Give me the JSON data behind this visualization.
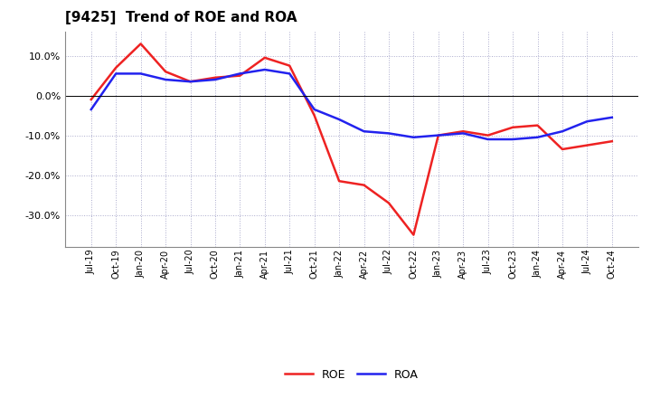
{
  "title": "[9425]  Trend of ROE and ROA",
  "x_labels": [
    "Jul-19",
    "Oct-19",
    "Jan-20",
    "Apr-20",
    "Jul-20",
    "Oct-20",
    "Jan-21",
    "Apr-21",
    "Jul-21",
    "Oct-21",
    "Jan-22",
    "Apr-22",
    "Jul-22",
    "Oct-22",
    "Jan-23",
    "Apr-23",
    "Jul-23",
    "Oct-23",
    "Jan-24",
    "Apr-24",
    "Jul-24",
    "Oct-24"
  ],
  "roe": [
    -1.0,
    7.0,
    13.0,
    6.0,
    3.5,
    4.5,
    5.0,
    9.5,
    7.5,
    -5.0,
    -21.5,
    -22.5,
    -27.0,
    -35.0,
    -10.0,
    -9.0,
    -10.0,
    -8.0,
    -7.5,
    -13.5,
    -12.5,
    -11.5
  ],
  "roa": [
    -3.5,
    5.5,
    5.5,
    4.0,
    3.5,
    4.0,
    5.5,
    6.5,
    5.5,
    -3.5,
    -6.0,
    -9.0,
    -9.5,
    -10.5,
    -10.0,
    -9.5,
    -11.0,
    -11.0,
    -10.5,
    -9.0,
    -6.5,
    -5.5
  ],
  "roe_color": "#ee2222",
  "roa_color": "#2222ee",
  "bg_color": "#ffffff",
  "plot_bg_color": "#ffffff",
  "grid_color": "#aaaacc",
  "ylim": [
    -38,
    16
  ],
  "yticks": [
    10.0,
    0.0,
    -10.0,
    -20.0,
    -30.0
  ],
  "title_fontsize": 11,
  "line_width": 1.8
}
